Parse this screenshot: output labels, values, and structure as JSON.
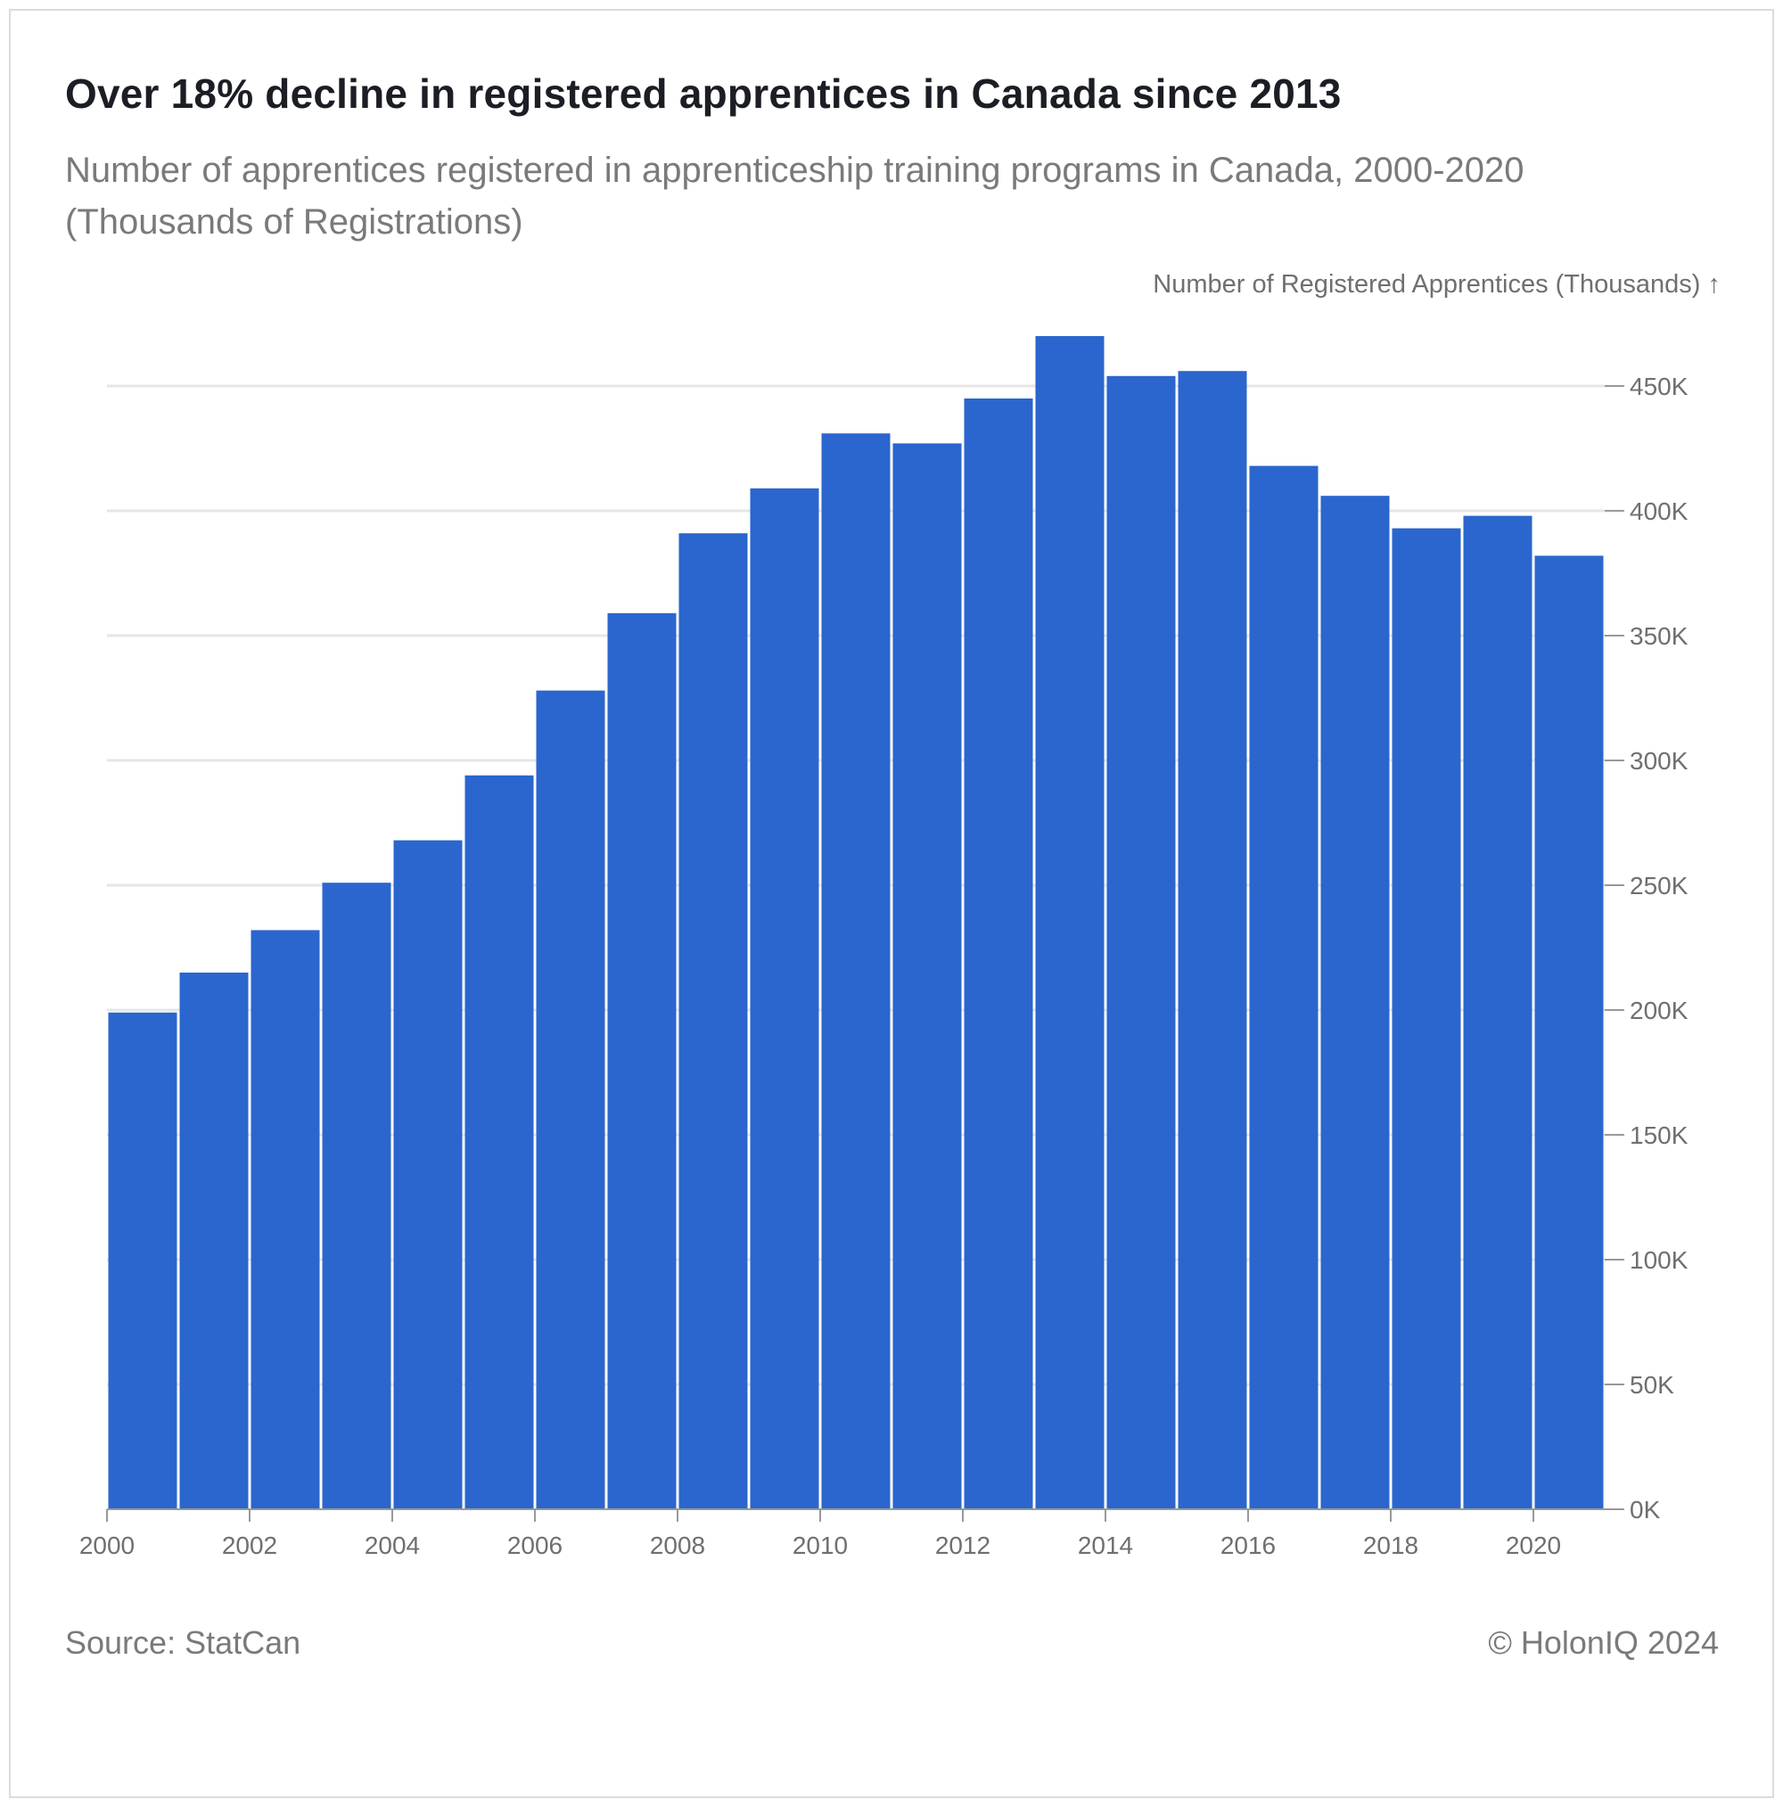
{
  "title": "Over 18% decline in registered apprentices in Canada since 2013",
  "subtitle": "Number of apprentices registered in apprenticeship training programs in Canada, 2000-2020 (Thousands of Registrations)",
  "source": "Source: StatCan",
  "credit": "© HolonIQ 2024",
  "colors": {
    "bar": "#2a66cd",
    "grid": "#e6e6e6",
    "axis": "#999999",
    "text": "#6f6f6f"
  },
  "chart_data": {
    "type": "bar",
    "ylabel": "Number of Registered Apprentices (Thousands) ↑",
    "ylim": [
      0,
      450
    ],
    "yticks": [
      0,
      50,
      100,
      150,
      200,
      250,
      300,
      350,
      400,
      450
    ],
    "ytick_labels": [
      "0K",
      "50K",
      "100K",
      "150K",
      "200K",
      "250K",
      "300K",
      "350K",
      "400K",
      "450K"
    ],
    "xticks": [
      2000,
      2002,
      2004,
      2006,
      2008,
      2010,
      2012,
      2014,
      2016,
      2018,
      2020
    ],
    "xtick_labels": [
      "2000",
      "2002",
      "2004",
      "2006",
      "2008",
      "2010",
      "2012",
      "2014",
      "2016",
      "2018",
      "2020"
    ],
    "xlim": [
      2000,
      2021
    ],
    "categories": [
      2000,
      2001,
      2002,
      2003,
      2004,
      2005,
      2006,
      2007,
      2008,
      2009,
      2010,
      2011,
      2012,
      2013,
      2014,
      2015,
      2016,
      2017,
      2018,
      2019,
      2020
    ],
    "values": [
      199,
      215,
      232,
      251,
      268,
      294,
      328,
      359,
      391,
      409,
      431,
      427,
      445,
      470,
      454,
      456,
      418,
      406,
      393,
      398,
      382
    ],
    "grid": true,
    "y_axis_position": "right"
  }
}
